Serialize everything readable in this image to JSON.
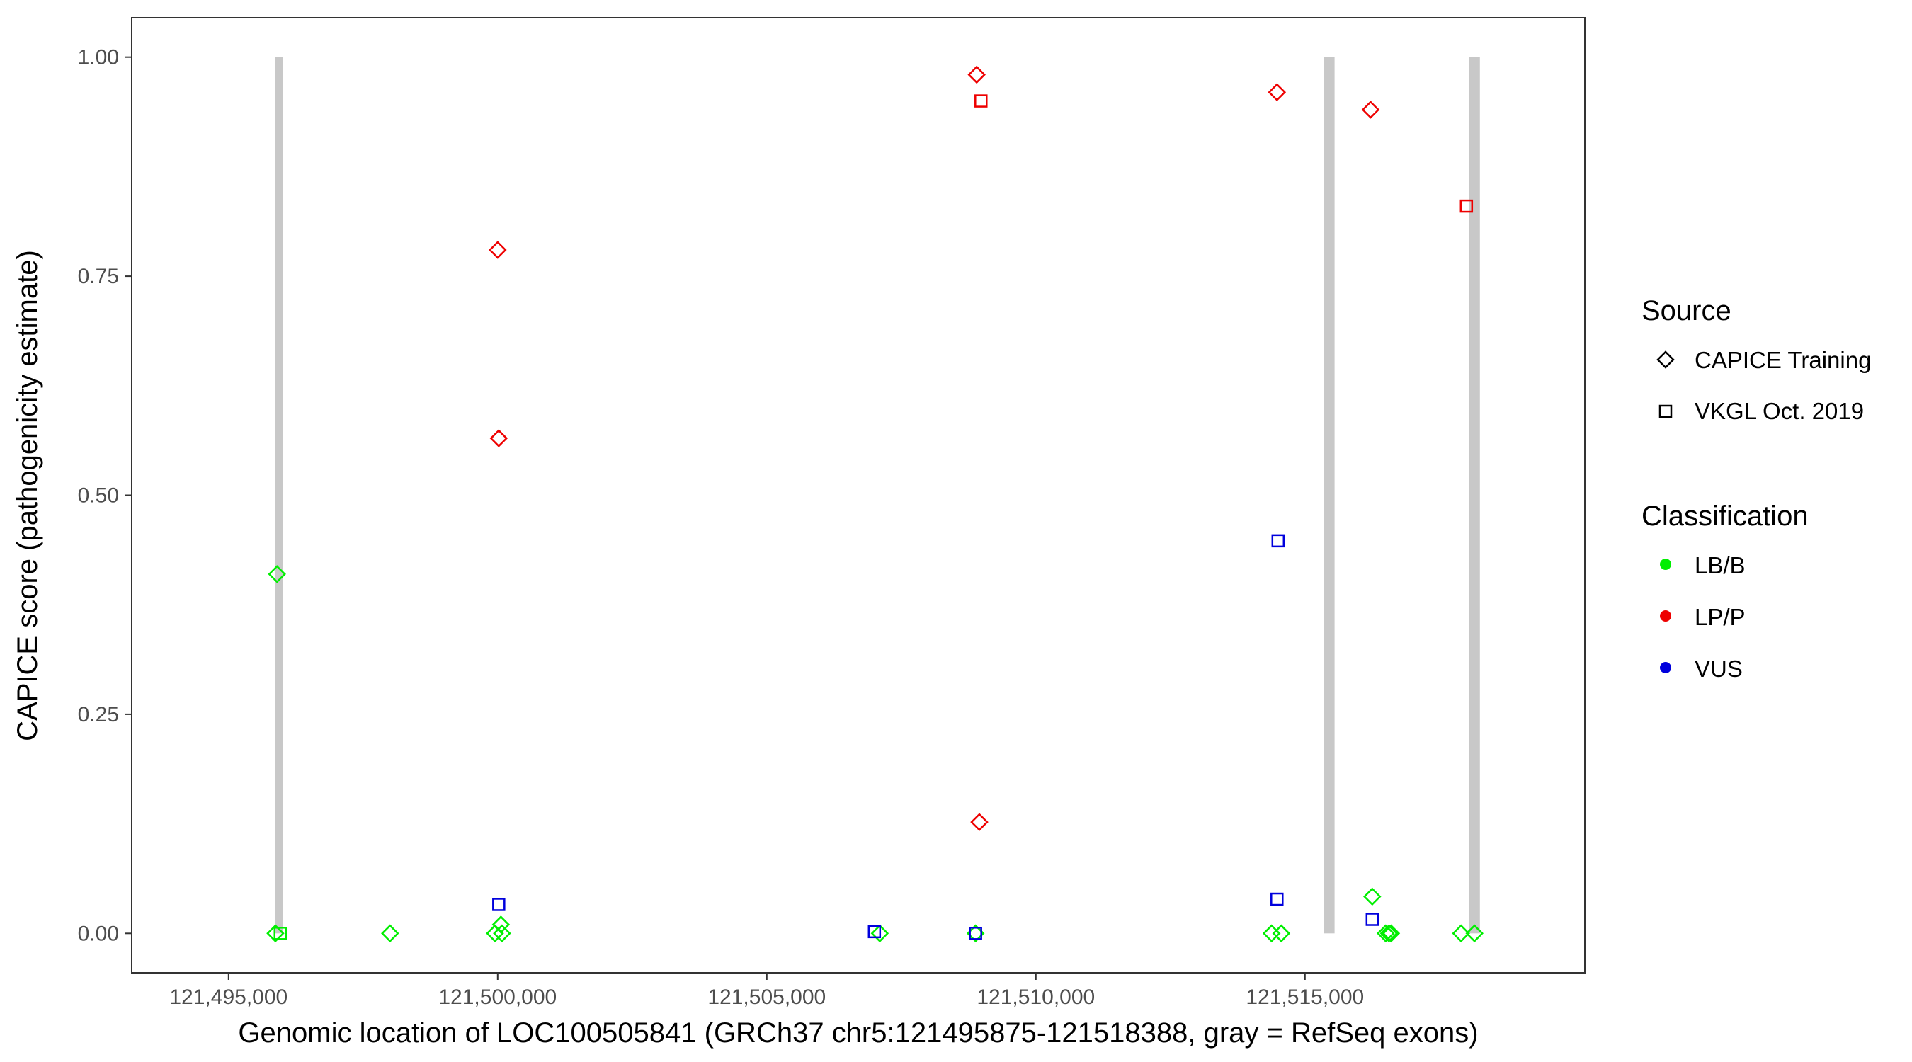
{
  "chart_data": {
    "type": "scatter",
    "xlabel": "Genomic location of LOC100505841 (GRCh37 chr5:121495875-121518388, gray = RefSeq exons)",
    "ylabel": "CAPICE score (pathogenicity estimate)",
    "xlim": [
      121493200,
      121520200
    ],
    "ylim": [
      -0.045,
      1.045
    ],
    "x_ticks": [
      121495000,
      121500000,
      121505000,
      121510000,
      121515000
    ],
    "x_tick_labels": [
      "121,495,000",
      "121,500,000",
      "121,505,000",
      "121,510,000",
      "121,515,000"
    ],
    "y_ticks": [
      0,
      0.25,
      0.5,
      0.75,
      1.0
    ],
    "y_tick_labels": [
      "0.00",
      "0.25",
      "0.50",
      "0.75",
      "1.00"
    ],
    "grid": false,
    "exons": [
      {
        "start": 121495875,
        "end": 121496000,
        "ymin": 0,
        "ymax": 1
      },
      {
        "start": 121515350,
        "end": 121515550,
        "ymin": 0,
        "ymax": 1
      },
      {
        "start": 121518050,
        "end": 121518250,
        "ymin": 0,
        "ymax": 1
      }
    ],
    "exon_color": "#c8c8c8",
    "colors": {
      "LB/B": "#00ee00",
      "LP/P": "#ee0000",
      "VUS": "#0000dd"
    },
    "legend": {
      "placement": "right",
      "source_title": "Source",
      "source_items": [
        {
          "label": "CAPICE Training",
          "shape": "diamond"
        },
        {
          "label": "VKGL Oct. 2019",
          "shape": "square"
        }
      ],
      "class_title": "Classification",
      "class_items": [
        {
          "label": "LB/B",
          "color": "#00ee00"
        },
        {
          "label": "LP/P",
          "color": "#ee0000"
        },
        {
          "label": "VUS",
          "color": "#0000dd"
        }
      ]
    },
    "points": [
      {
        "x": 121495870,
        "y": 0.0,
        "source": "CAPICE Training",
        "class": "LB/B"
      },
      {
        "x": 121495960,
        "y": 0.0,
        "source": "VKGL Oct. 2019",
        "class": "LB/B"
      },
      {
        "x": 121495900,
        "y": 0.41,
        "source": "CAPICE Training",
        "class": "LB/B"
      },
      {
        "x": 121498000,
        "y": 0.0,
        "source": "CAPICE Training",
        "class": "LB/B"
      },
      {
        "x": 121499950,
        "y": 0.0,
        "source": "CAPICE Training",
        "class": "LB/B"
      },
      {
        "x": 121500080,
        "y": 0.0,
        "source": "CAPICE Training",
        "class": "LB/B"
      },
      {
        "x": 121500060,
        "y": 0.01,
        "source": "CAPICE Training",
        "class": "LB/B"
      },
      {
        "x": 121500000,
        "y": 0.78,
        "source": "CAPICE Training",
        "class": "LP/P"
      },
      {
        "x": 121500020,
        "y": 0.565,
        "source": "CAPICE Training",
        "class": "LP/P"
      },
      {
        "x": 121500020,
        "y": 0.033,
        "source": "VKGL Oct. 2019",
        "class": "VUS"
      },
      {
        "x": 121507100,
        "y": 0.0,
        "source": "CAPICE Training",
        "class": "LB/B"
      },
      {
        "x": 121507000,
        "y": 0.002,
        "source": "VKGL Oct. 2019",
        "class": "VUS"
      },
      {
        "x": 121508900,
        "y": 0.98,
        "source": "CAPICE Training",
        "class": "LP/P"
      },
      {
        "x": 121508980,
        "y": 0.95,
        "source": "VKGL Oct. 2019",
        "class": "LP/P"
      },
      {
        "x": 121508950,
        "y": 0.127,
        "source": "CAPICE Training",
        "class": "LP/P"
      },
      {
        "x": 121508880,
        "y": 0.0,
        "source": "CAPICE Training",
        "class": "LB/B"
      },
      {
        "x": 121508880,
        "y": 0.0,
        "source": "VKGL Oct. 2019",
        "class": "VUS"
      },
      {
        "x": 121514480,
        "y": 0.96,
        "source": "CAPICE Training",
        "class": "LP/P"
      },
      {
        "x": 121514500,
        "y": 0.448,
        "source": "VKGL Oct. 2019",
        "class": "VUS"
      },
      {
        "x": 121514480,
        "y": 0.039,
        "source": "VKGL Oct. 2019",
        "class": "VUS"
      },
      {
        "x": 121514380,
        "y": 0.0,
        "source": "CAPICE Training",
        "class": "LB/B"
      },
      {
        "x": 121514560,
        "y": 0.0,
        "source": "CAPICE Training",
        "class": "LB/B"
      },
      {
        "x": 121516220,
        "y": 0.94,
        "source": "CAPICE Training",
        "class": "LP/P"
      },
      {
        "x": 121516250,
        "y": 0.042,
        "source": "CAPICE Training",
        "class": "LB/B"
      },
      {
        "x": 121516250,
        "y": 0.016,
        "source": "VKGL Oct. 2019",
        "class": "VUS"
      },
      {
        "x": 121516500,
        "y": 0.0,
        "source": "CAPICE Training",
        "class": "LB/B"
      },
      {
        "x": 121516560,
        "y": 0.0,
        "source": "CAPICE Training",
        "class": "LB/B"
      },
      {
        "x": 121516600,
        "y": 0.0,
        "source": "CAPICE Training",
        "class": "LB/B"
      },
      {
        "x": 121518000,
        "y": 0.83,
        "source": "VKGL Oct. 2019",
        "class": "LP/P"
      },
      {
        "x": 121517900,
        "y": 0.0,
        "source": "CAPICE Training",
        "class": "LB/B"
      },
      {
        "x": 121518150,
        "y": 0.0,
        "source": "CAPICE Training",
        "class": "LB/B"
      }
    ]
  }
}
